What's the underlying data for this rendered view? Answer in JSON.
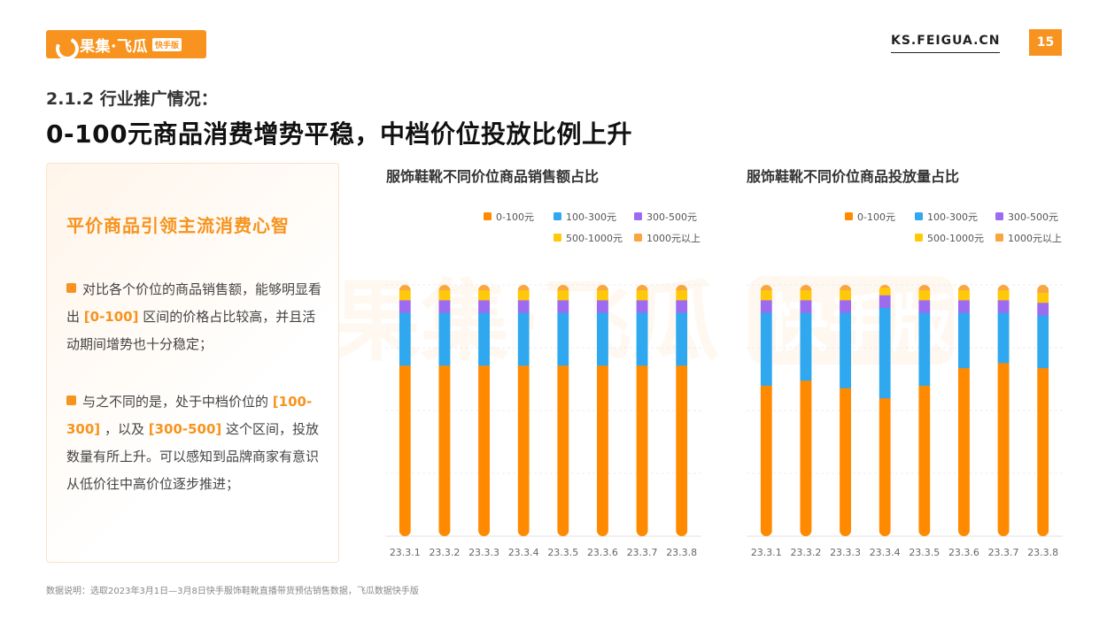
{
  "header": {
    "logo_text": "果集·飞瓜",
    "logo_badge": "快手版",
    "site_url": "KS.FEIGUA.CN",
    "page_number": "15"
  },
  "section_title": "2.1.2 行业推广情况：",
  "main_title": "0-100元商品消费增势平稳，中档价位投放比例上升",
  "panel": {
    "title": "平价商品引领主流消费心智",
    "p1_a": "对比各个价位的商品销售额，能够明显看出 ",
    "p1_hl": "[0-100]",
    "p1_b": " 区间的价格占比较高，并且活动期间增势也十分稳定；",
    "p2_a": "与之不同的是，处于中档价位的 ",
    "p2_hl1": "[100-300]",
    "p2_b": " ，以及 ",
    "p2_hl2": "[300-500]",
    "p2_c": " 这个区间，投放数量有所上升。可以感知到品牌商家有意识从低价往中高价位逐步推进；"
  },
  "watermark": {
    "text": "果集·飞瓜",
    "badge": "快手版"
  },
  "footnote": "数据说明：选取2023年3月1日—3月8日快手服饰鞋靴直播带货预估销售数据，飞瓜数据快手版",
  "colors": {
    "accent": "#f7931e",
    "s0": "#ff8a00",
    "s1": "#2fa8f0",
    "s2": "#9d6bf0",
    "s3": "#ffc90a",
    "s4": "#f9a540"
  },
  "chart_data": [
    {
      "type": "bar",
      "stacked": true,
      "percent": true,
      "title": "服饰鞋靴不同价位商品销售额占比",
      "categories": [
        "23.3.1",
        "23.3.2",
        "23.3.3",
        "23.3.4",
        "23.3.5",
        "23.3.6",
        "23.3.7",
        "23.3.8"
      ],
      "ylim": [
        0,
        100
      ],
      "legend_position": "top-right",
      "series": [
        {
          "name": "0-100元",
          "values": [
            68,
            68,
            68,
            68,
            68,
            68,
            68,
            68
          ]
        },
        {
          "name": "100-300元",
          "values": [
            21,
            21,
            21,
            21,
            21,
            21,
            21,
            21
          ]
        },
        {
          "name": "300-500元",
          "values": [
            5,
            5,
            5,
            5,
            5,
            5,
            5,
            5
          ]
        },
        {
          "name": "500-1000元",
          "values": [
            4,
            4,
            4,
            4,
            4,
            4,
            4,
            4
          ]
        },
        {
          "name": "1000元以上",
          "values": [
            2,
            2,
            2,
            2,
            2,
            2,
            2,
            2
          ]
        }
      ]
    },
    {
      "type": "bar",
      "stacked": true,
      "percent": true,
      "title": "服饰鞋靴不同价位商品投放量占比",
      "categories": [
        "23.3.1",
        "23.3.2",
        "23.3.3",
        "23.3.4",
        "23.3.5",
        "23.3.6",
        "23.3.7",
        "23.3.8"
      ],
      "ylim": [
        0,
        100
      ],
      "legend_position": "top-right",
      "series": [
        {
          "name": "0-100元",
          "values": [
            60,
            62,
            59,
            55,
            60,
            67,
            69,
            67
          ]
        },
        {
          "name": "100-300元",
          "values": [
            29,
            27,
            30,
            36,
            29,
            22,
            20,
            21
          ]
        },
        {
          "name": "300-500元",
          "values": [
            5,
            5,
            5,
            5,
            5,
            5,
            5,
            5
          ]
        },
        {
          "name": "500-1000元",
          "values": [
            4,
            4,
            4,
            3,
            4,
            4,
            4,
            4
          ]
        },
        {
          "name": "1000元以上",
          "values": [
            2,
            2,
            2,
            1,
            2,
            2,
            2,
            3
          ]
        }
      ]
    }
  ]
}
